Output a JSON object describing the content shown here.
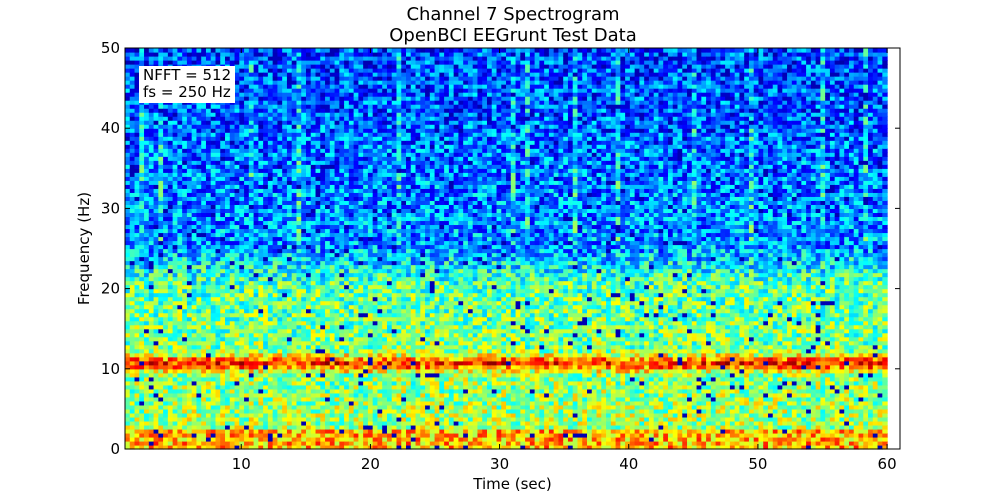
{
  "chart_data": {
    "type": "heatmap",
    "title": "Channel 7 Spectrogram",
    "subtitle": "OpenBCI EEGrunt Test Data",
    "xlabel": "Time (sec)",
    "ylabel": "Frequency (Hz)",
    "xlim": [
      1,
      61
    ],
    "ylim": [
      0,
      50
    ],
    "x_ticks": [
      10,
      20,
      30,
      40,
      50,
      60
    ],
    "y_ticks": [
      0,
      10,
      20,
      30,
      40,
      50
    ],
    "colormap": "jet",
    "data_extent_x": [
      1,
      60
    ],
    "annotation": [
      "NFFT = 512",
      "fs = 250 Hz"
    ],
    "features": {
      "alpha_band_hz": 10.5,
      "low_freq_power_below_hz": 20,
      "high_freq_power_above_hz": 25
    }
  }
}
